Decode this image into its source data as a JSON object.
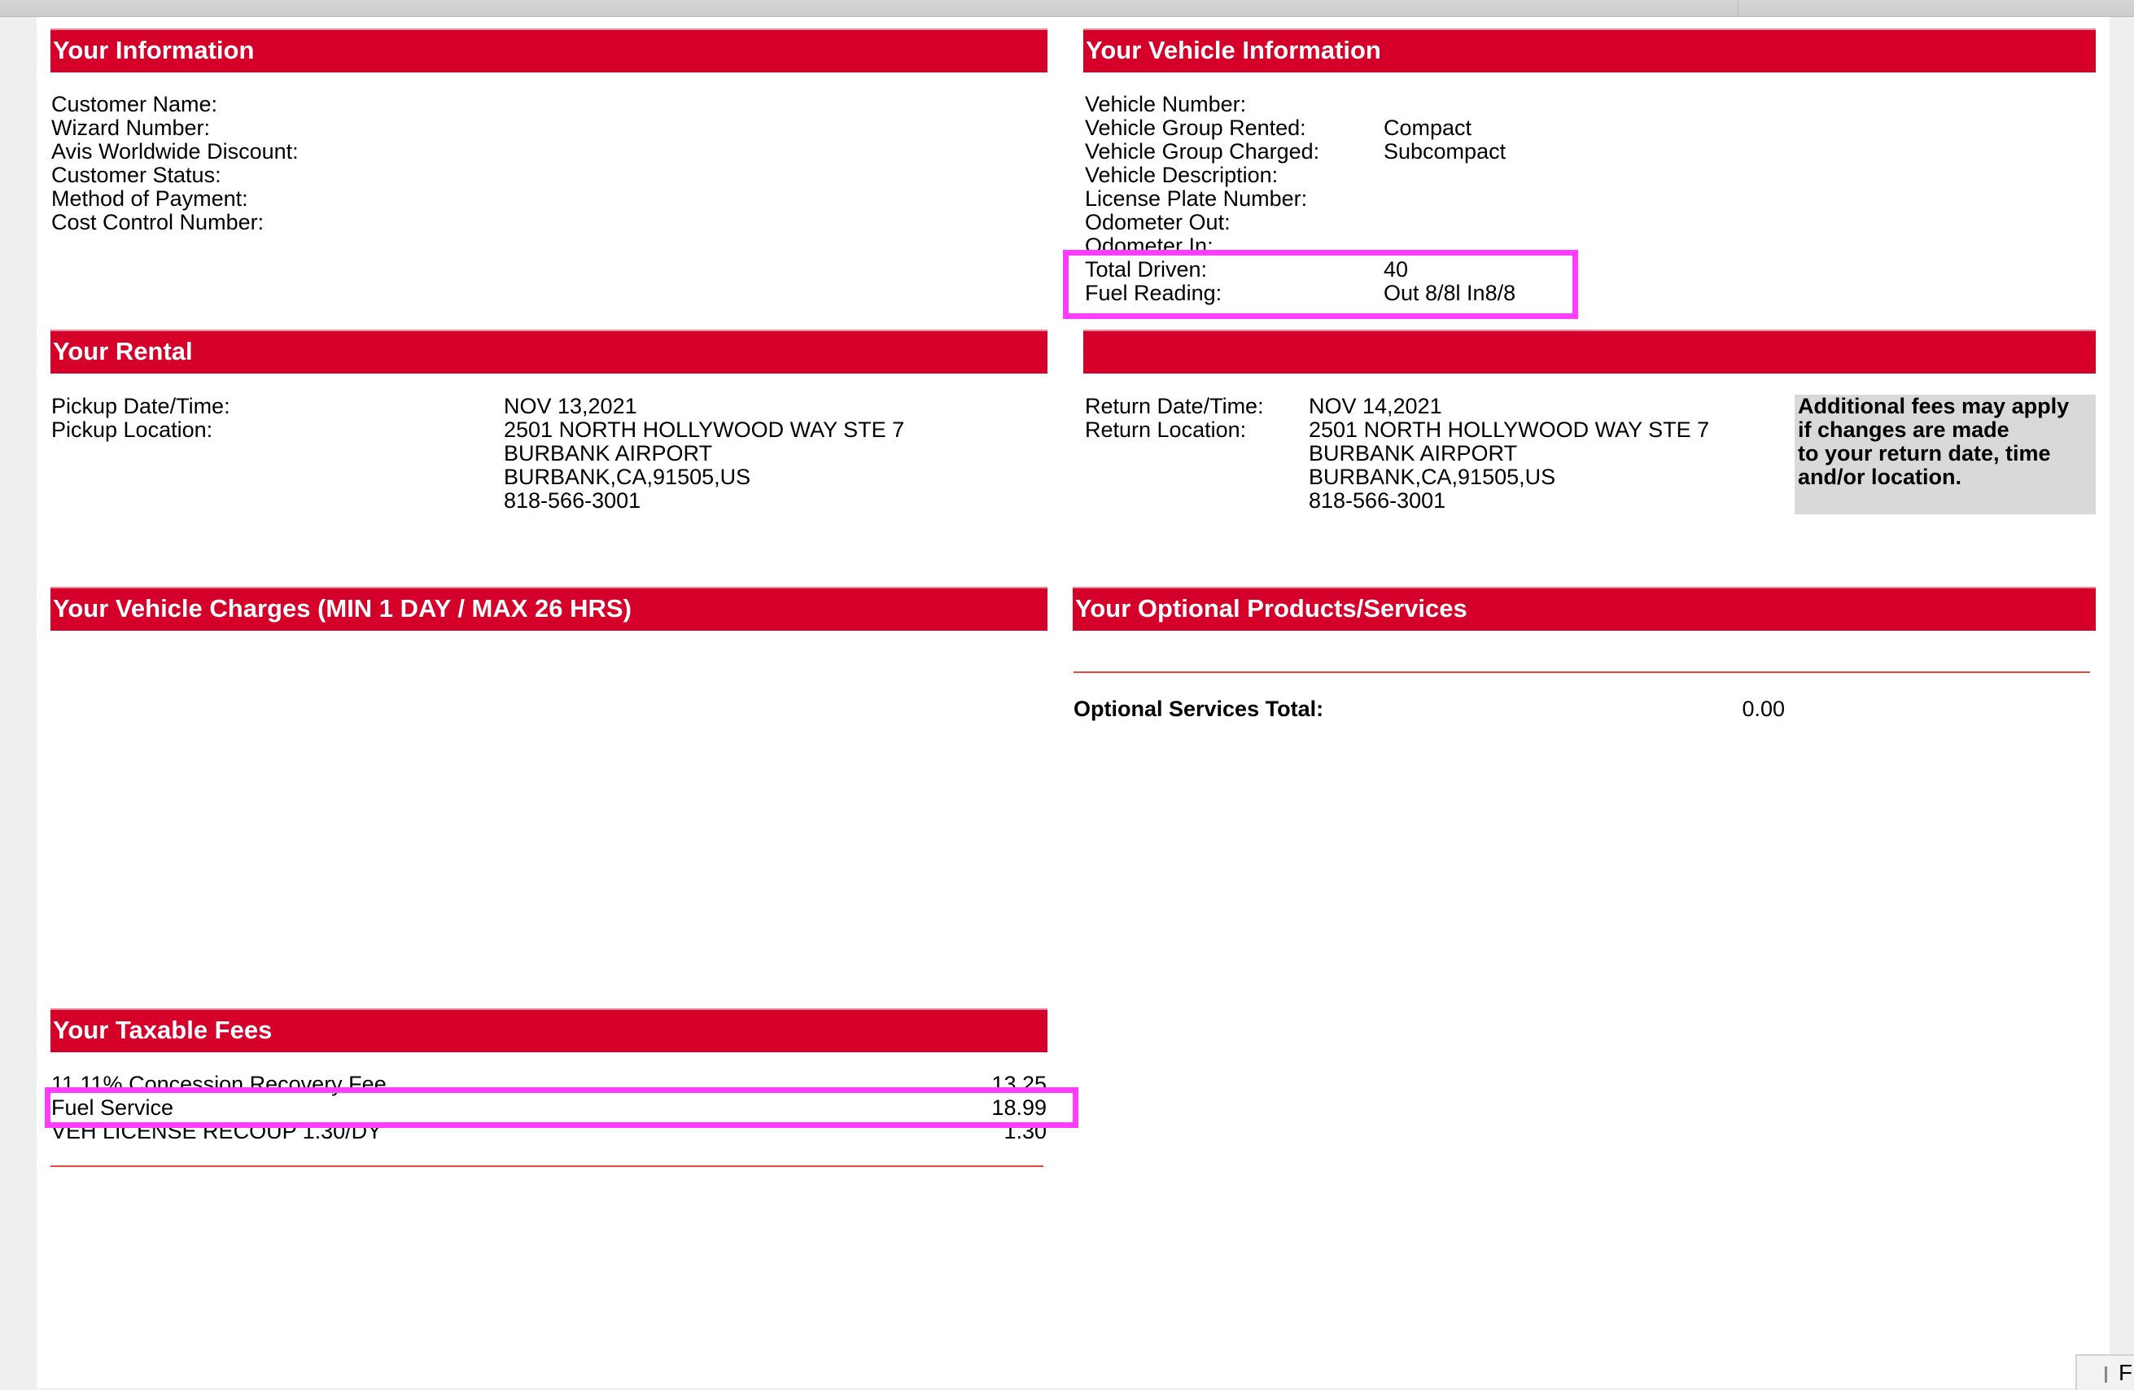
{
  "your_information": {
    "title": "Your Information",
    "labels": [
      "Customer Name:",
      "Wizard Number:",
      "Avis Worldwide Discount:",
      "Customer Status:",
      "Method of Payment:",
      "Cost Control Number:"
    ]
  },
  "vehicle_information": {
    "title": "Your Vehicle Information",
    "rows": [
      {
        "label": "Vehicle Number:",
        "value": ""
      },
      {
        "label": "Vehicle Group Rented:",
        "value": "Compact"
      },
      {
        "label": "Vehicle Group Charged:",
        "value": "Subcompact"
      },
      {
        "label": "Vehicle Description:",
        "value": ""
      },
      {
        "label": "License Plate Number:",
        "value": ""
      },
      {
        "label": "Odometer Out:",
        "value": ""
      },
      {
        "label": "Odometer In:",
        "value": ""
      },
      {
        "label": "Total Driven:",
        "value": "40"
      },
      {
        "label": "Fuel Reading:",
        "value": "Out 8/8l In8/8"
      }
    ]
  },
  "rental": {
    "title": "Your Rental",
    "pickup_datetime_label": "Pickup Date/Time:",
    "pickup_datetime": "NOV 13,2021",
    "pickup_location_label": "Pickup Location:",
    "pickup_location": [
      "2501 NORTH HOLLYWOOD WAY STE 7",
      "BURBANK AIRPORT",
      "BURBANK,CA,91505,US",
      "818-566-3001"
    ],
    "return_datetime_label": "Return Date/Time:",
    "return_datetime": "NOV 14,2021",
    "return_location_label": "Return Location:",
    "return_location": [
      "2501 NORTH HOLLYWOOD WAY STE 7",
      "BURBANK AIRPORT",
      "BURBANK,CA,91505,US",
      "818-566-3001"
    ],
    "note": [
      "Additional fees may apply",
      "if changes are made",
      "to your return date, time",
      "and/or location."
    ]
  },
  "vehicle_charges": {
    "title": "Your Vehicle Charges (MIN 1 DAY / MAX 26 HRS)"
  },
  "optional": {
    "title": "Your Optional Products/Services",
    "total_label": "Optional Services Total:",
    "total_value": "0.00"
  },
  "taxable_fees": {
    "title": "Your Taxable Fees",
    "rows": [
      {
        "label": "11.11% Concession Recovery Fee",
        "value": "13.25"
      },
      {
        "label": "Fuel Service",
        "value": "18.99"
      },
      {
        "label": "VEH LICENSE RECOUP 1.30/DY",
        "value": "1.30"
      }
    ]
  },
  "corner_button": {
    "label": "F"
  },
  "colors": {
    "header_red": "#d4002a",
    "highlight": "#ff3cff"
  }
}
